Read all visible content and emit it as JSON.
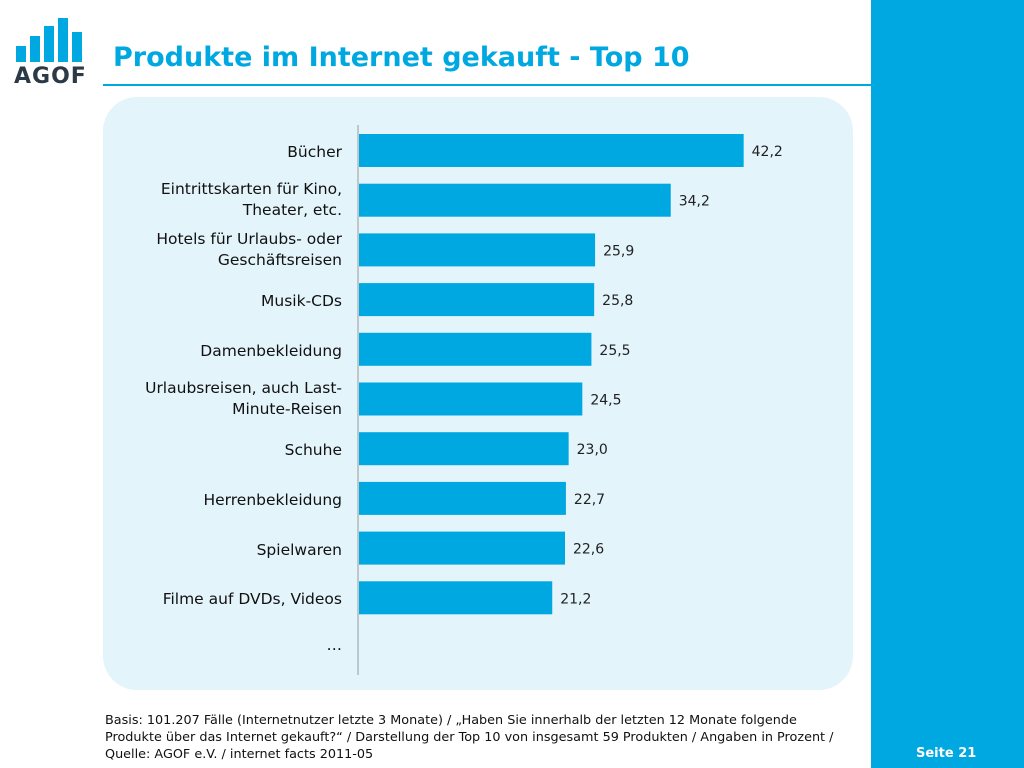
{
  "header": {
    "logo_text": "AGOF",
    "title": "Produkte im Internet gekauft - Top 10"
  },
  "colors": {
    "accent": "#00a8e1",
    "panel": "#e3f4fb",
    "logo_text": "#2b3a46"
  },
  "chart_data": {
    "type": "bar",
    "orientation": "horizontal",
    "title": "Produkte im Internet gekauft - Top 10",
    "xlabel": "",
    "ylabel": "",
    "xlim": [
      0,
      55
    ],
    "grid": false,
    "legend": "none",
    "categories": [
      "Bücher",
      "Eintrittskarten für Kino, Theater, etc.",
      "Hotels für Urlaubs- oder Geschäftsreisen",
      "Musik-CDs",
      "Damenbekleidung",
      "Urlaubsreisen, auch Last-Minute-Reisen",
      "Schuhe",
      "Herrenbekleidung",
      "Spielwaren",
      "Filme auf DVDs, Videos"
    ],
    "category_lines": [
      [
        "Bücher"
      ],
      [
        "Eintrittskarten für Kino,",
        "Theater, etc."
      ],
      [
        "Hotels für Urlaubs- oder",
        "Geschäftsreisen"
      ],
      [
        "Musik-CDs"
      ],
      [
        "Damenbekleidung"
      ],
      [
        "Urlaubsreisen, auch Last-",
        "Minute-Reisen"
      ],
      [
        "Schuhe"
      ],
      [
        "Herrenbekleidung"
      ],
      [
        "Spielwaren"
      ],
      [
        "Filme auf DVDs, Videos"
      ]
    ],
    "values": [
      42.2,
      34.2,
      25.9,
      25.8,
      25.5,
      24.5,
      23.0,
      22.7,
      22.6,
      21.2
    ],
    "value_labels": [
      "42,2",
      "34,2",
      "25,9",
      "25,8",
      "25,5",
      "24,5",
      "23,0",
      "22,7",
      "22,6",
      "21,2"
    ],
    "trailing_label": "…",
    "bar_color": "#00a8e1"
  },
  "footer": {
    "note": "Basis: 101.207 Fälle (Internetnutzer letzte 3 Monate) / „Haben Sie innerhalb der letzten 12 Monate folgende Produkte über das Internet gekauft?“ / Darstellung der Top 10 von insgesamt 59 Produkten / Angaben in Prozent / Quelle: AGOF e.V. / internet facts 2011-05",
    "page_label": "Seite 21"
  }
}
